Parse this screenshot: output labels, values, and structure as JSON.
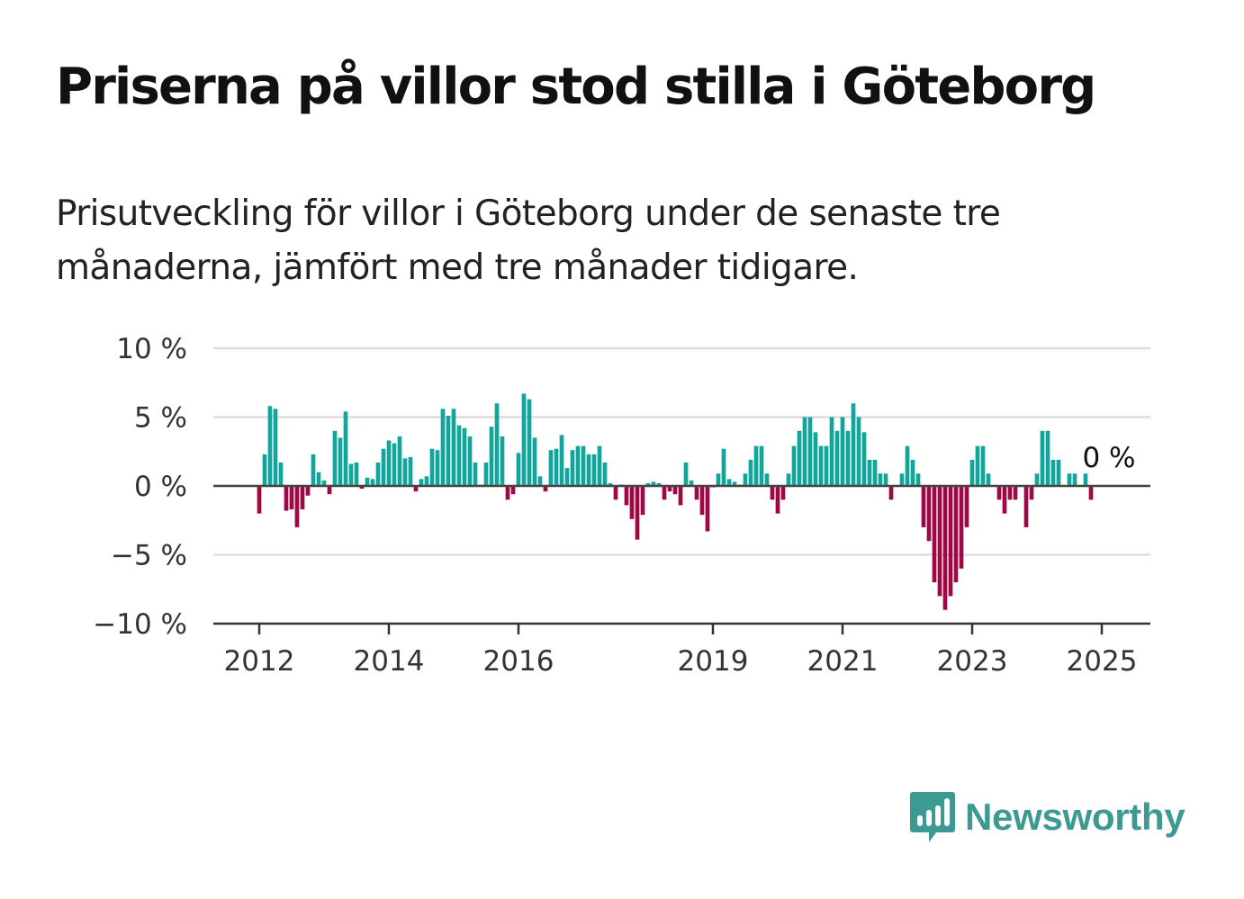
{
  "title": "Priserna på villor stod stilla i Göteborg",
  "subtitle": "Prisutveckling för villor i Göteborg under de senaste tre månaderna, jämfört med tre månader tidigare.",
  "brand": {
    "name": "Newsworthy",
    "logo_icon": "bar-chart-speech-bubble-icon"
  },
  "colors": {
    "positive": "#13a59b",
    "negative": "#9b0a44",
    "grid": "#dddddd",
    "axis": "#444444"
  },
  "chart_data": {
    "type": "bar",
    "title": "Priserna på villor stod stilla i Göteborg",
    "subtitle": "Prisutveckling för villor i Göteborg under de senaste tre månaderna, jämfört med tre månader tidigare.",
    "unit": "%",
    "ylim": [
      -10,
      10
    ],
    "yticks": [
      10,
      5,
      0,
      -5,
      -10
    ],
    "ytick_labels": [
      "10 %",
      "5 %",
      "0 %",
      "−5 %",
      "−10 %"
    ],
    "xticks": [
      2012,
      2014,
      2016,
      2019,
      2021,
      2023,
      2025
    ],
    "xtick_labels": [
      "2012",
      "2014",
      "2016",
      "2019",
      "2021",
      "2023",
      "2025"
    ],
    "x_start": "2012-01",
    "frequency": "monthly",
    "grid": true,
    "annotation": {
      "label": "0 %",
      "x": "2025-01",
      "y": 0
    },
    "values": [
      -2,
      2.3,
      5.8,
      5.6,
      1.7,
      -1.8,
      -1.7,
      -3,
      -1.7,
      -0.7,
      2.3,
      1,
      0.4,
      -0.6,
      4,
      3.5,
      5.4,
      1.6,
      1.7,
      -0.2,
      0.6,
      0.5,
      1.7,
      2.7,
      3.3,
      3.1,
      3.6,
      2,
      2.1,
      -0.4,
      0.5,
      0.7,
      2.7,
      2.6,
      5.6,
      5.1,
      5.6,
      4.4,
      4.2,
      3.6,
      1.7,
      0.1,
      1.7,
      4.3,
      6,
      3.6,
      -1,
      -0.6,
      2.4,
      6.7,
      6.3,
      3.5,
      0.7,
      -0.4,
      2.6,
      2.7,
      3.7,
      1.3,
      2.6,
      2.9,
      2.9,
      2.3,
      2.3,
      2.9,
      1.7,
      0.2,
      -1,
      0.1,
      -1.4,
      -2.4,
      -3.9,
      -2.1,
      0.2,
      0.3,
      0.2,
      -1,
      -0.4,
      -0.6,
      -1.4,
      1.7,
      0.4,
      -1,
      -2.1,
      -3.3,
      -0.1,
      0.9,
      2.7,
      0.5,
      0.3,
      0.1,
      0.9,
      1.9,
      2.9,
      2.9,
      0.9,
      -1,
      -2,
      -1,
      0.9,
      2.9,
      4,
      5,
      5,
      3.9,
      2.9,
      2.9,
      5,
      4,
      5,
      4,
      6,
      5,
      3.9,
      1.9,
      1.9,
      0.9,
      0.9,
      -1,
      0,
      0.9,
      2.9,
      1.9,
      0.9,
      -3,
      -4,
      -7,
      -8,
      -9,
      -8,
      -7,
      -6,
      -3,
      1.9,
      2.9,
      2.9,
      0.9,
      0,
      -1,
      -2,
      -1,
      -1,
      0,
      -3,
      -1,
      0.9,
      4,
      4,
      1.9,
      1.9,
      0,
      0.9,
      0.9,
      0,
      0.9,
      -1,
      0
    ]
  }
}
